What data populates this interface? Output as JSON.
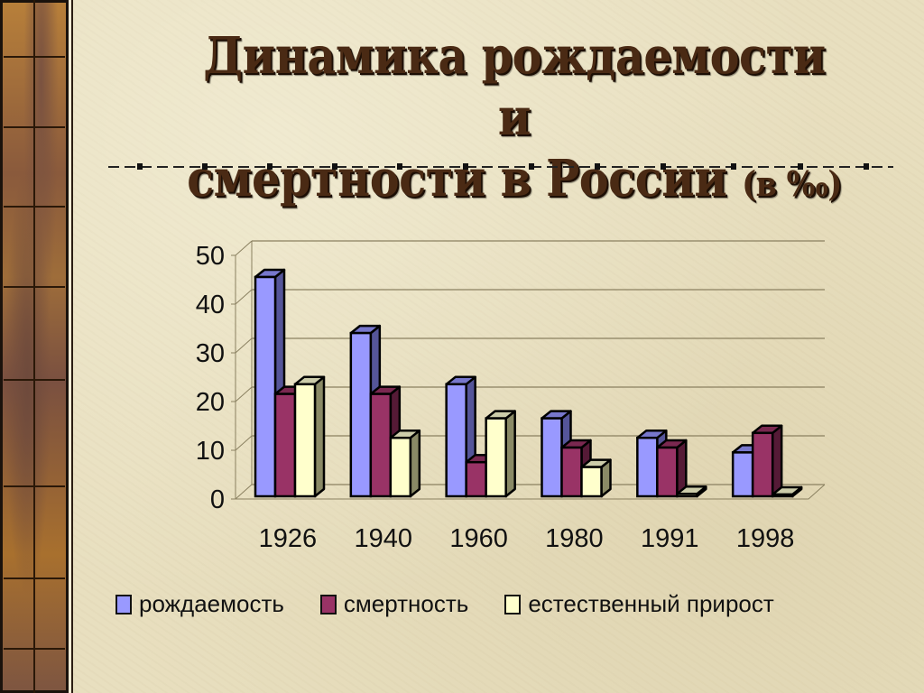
{
  "slide": {
    "title_line1": "Динамика рождаемости и",
    "title_line2": "смертности в России",
    "title_unit": "(в ‰)"
  },
  "chart_data": {
    "type": "bar",
    "title": "Динамика рождаемости и смертности в России (в ‰)",
    "xlabel": "",
    "ylabel": "",
    "ylim": [
      0,
      50
    ],
    "yticks": [
      0,
      10,
      20,
      30,
      40,
      50
    ],
    "grid": true,
    "legend_position": "bottom",
    "categories": [
      "1926",
      "1940",
      "1960",
      "1980",
      "1991",
      "1998"
    ],
    "series": [
      {
        "name": "рождаемость",
        "color": "#9999FF",
        "values": [
          45,
          33.5,
          23,
          16,
          12,
          9
        ]
      },
      {
        "name": "смертность",
        "color": "#993366",
        "values": [
          21,
          21,
          7,
          10,
          10,
          13
        ]
      },
      {
        "name": "естественный прирост",
        "color": "#FFFFCC",
        "values": [
          23,
          12,
          16,
          6,
          0.5,
          0
        ]
      }
    ]
  },
  "legend": {
    "items": [
      {
        "label": "рождаемость",
        "color": "#9999FF"
      },
      {
        "label": "смертность",
        "color": "#993366"
      },
      {
        "label": "естественный прирост",
        "color": "#FFFFCC"
      }
    ]
  }
}
